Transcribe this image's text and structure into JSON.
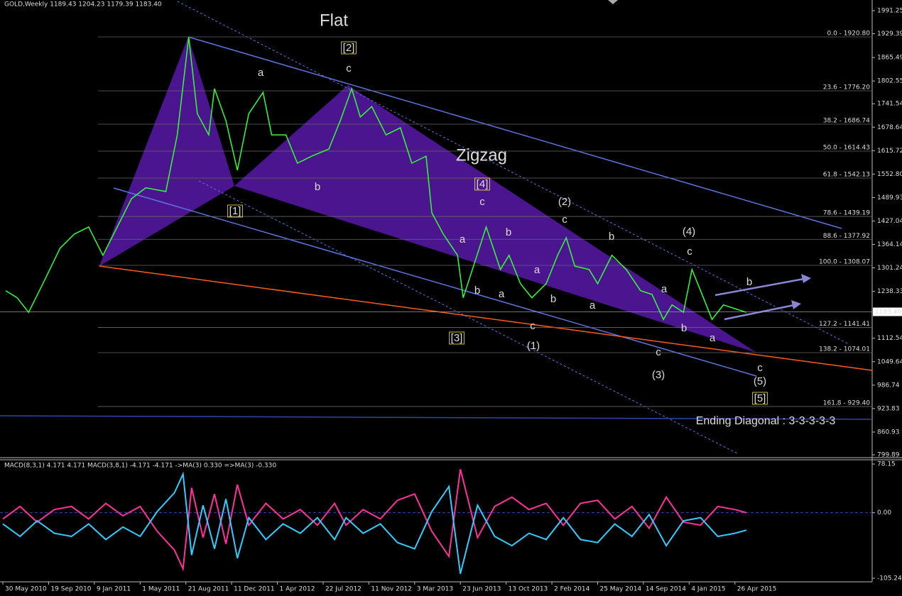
{
  "header": "GOLD,Weekly  1189.43 1204.23 1179.39 1183.40",
  "macd_header": "MACD(8,3,1) 4.171 4.171  MACD(3,8,1) -4.171 -4.171  ->MA(3) 0.330  =>MA(3) -0.330",
  "chart_data": [
    {
      "type": "line",
      "x": [
        1,
        5,
        9,
        14,
        20,
        25,
        30,
        35,
        40,
        45,
        50,
        57,
        61,
        65,
        68,
        72,
        74,
        78,
        82,
        86,
        91,
        94,
        99,
        103,
        108,
        114,
        118,
        122,
        125,
        129,
        134,
        139,
        143,
        148,
        150,
        154,
        159,
        161,
        165,
        169,
        174,
        177,
        181,
        185,
        190,
        194,
        197,
        200,
        205,
        208,
        213,
        218,
        223,
        227,
        231,
        234,
        238,
        241,
        244,
        248,
        252,
        256,
        260
      ],
      "series": [
        {
          "color": "#33ff33",
          "values": [
            1240,
            1221,
            1182,
            1259,
            1354,
            1392,
            1411,
            1335,
            1411,
            1487,
            1516,
            1506,
            1658,
            1920,
            1715,
            1658,
            1782,
            1696,
            1563,
            1715,
            1772,
            1658,
            1658,
            1582,
            1601,
            1620,
            1696,
            1782,
            1706,
            1734,
            1658,
            1677,
            1582,
            1601,
            1449,
            1392,
            1335,
            1221,
            1316,
            1411,
            1297,
            1335,
            1259,
            1221,
            1259,
            1335,
            1382,
            1306,
            1297,
            1259,
            1335,
            1297,
            1240,
            1230,
            1163,
            1202,
            1182,
            1297,
            1240,
            1163,
            1202,
            1192,
            1182
          ]
        }
      ],
      "xlim": [
        -1,
        304
      ],
      "ylim": [
        799.89,
        1991.25
      ],
      "xticks": [
        {
          "value": 0,
          "label": "30 May 2010"
        },
        {
          "value": 16,
          "label": "19 Sep 2010"
        },
        {
          "value": 32,
          "label": "9 Jan 2011"
        },
        {
          "value": 48,
          "label": "1 May 2011"
        },
        {
          "value": 64,
          "label": "21 Aug 2011"
        },
        {
          "value": 80,
          "label": "11 Dec 2011"
        },
        {
          "value": 96,
          "label": "1 Apr 2012"
        },
        {
          "value": 112,
          "label": "22 Jul 2012"
        },
        {
          "value": 128,
          "label": "11 Nov 2012"
        },
        {
          "value": 144,
          "label": "3 Mar 2013"
        },
        {
          "value": 160,
          "label": "23 Jun 2013"
        },
        {
          "value": 176,
          "label": "13 Oct 2013"
        },
        {
          "value": 192,
          "label": "2 Feb 2014"
        },
        {
          "value": 208,
          "label": "25 May 2014"
        },
        {
          "value": 224,
          "label": "14 Sep 2014"
        },
        {
          "value": 240,
          "label": "4 Jan 2015"
        },
        {
          "value": 256,
          "label": "26 Apr 2015"
        }
      ],
      "yticks": [
        1991.25,
        1929.39,
        1865.49,
        1802.55,
        1741.54,
        1678.64,
        1615.72,
        {
          "value": 1552.8,
          "label": "1552.80"
        },
        1489.93,
        1427.04,
        1364.14,
        1301.24,
        1238.33,
        1112.54,
        1049.64,
        986.74,
        923.83,
        860.93,
        799.89
      ],
      "last_price": {
        "value": 1183.4,
        "label": "1183.40"
      },
      "fib_levels": [
        {
          "value": 1920.8,
          "label": "0.0 - 1920.80"
        },
        {
          "value": 1776.2,
          "label": "23.6 - 1776.20"
        },
        {
          "value": 1686.74,
          "label": "38.2 - 1686.74"
        },
        {
          "value": 1614.43,
          "label": "50.0 - 1614.43"
        },
        {
          "value": 1542.13,
          "label": "61.8 - 1542.13"
        },
        {
          "value": 1439.19,
          "label": "78.6 - 1439.19"
        },
        {
          "value": 1377.92,
          "label": "88.6 - 1377.92"
        },
        {
          "value": 1308.07,
          "label": "100.0 - 1308.07"
        },
        {
          "value": 1141.41,
          "label": "127.2 - 1141.41"
        },
        {
          "value": 1074.01,
          "label": "138.2 - 1074.01"
        },
        {
          "value": 929.4,
          "label": "161.8 - 929.40"
        }
      ],
      "annotations": [
        {
          "text": "Flat",
          "color": "#e8317f"
        },
        {
          "text": "[2]",
          "color": "#ffee44"
        },
        {
          "text": "c",
          "color": "#33ddff"
        },
        {
          "text": "a",
          "color": "#33ddff"
        },
        {
          "text": "b",
          "color": "#33ddff"
        },
        {
          "text": "[1]",
          "color": "#ffee44"
        },
        {
          "text": "Zigzag",
          "color": "#e8317f"
        },
        {
          "text": "[4]",
          "color": "#ffee44"
        },
        {
          "text": "c",
          "color": "#b5a46a"
        },
        {
          "text": "(2)",
          "color": "#cc2222"
        },
        {
          "text": "c",
          "color": "#b5a46a"
        },
        {
          "text": "b",
          "color": "#33ddff"
        },
        {
          "text": "a",
          "color": "#b5a46a"
        },
        {
          "text": "b",
          "color": "#b5a46a"
        },
        {
          "text": "a",
          "color": "#33ddff"
        },
        {
          "text": "a",
          "color": "#b5a46a"
        },
        {
          "text": "b",
          "color": "#b5a46a"
        },
        {
          "text": "c",
          "color": "#33ddff"
        },
        {
          "text": "[3]",
          "color": "#ffee44"
        },
        {
          "text": "(1)",
          "color": "#cc2222"
        },
        {
          "text": "b",
          "color": "#33ddff"
        },
        {
          "text": "a",
          "color": "#33ddff"
        },
        {
          "text": "(4)",
          "color": "#cc2222"
        },
        {
          "text": "c",
          "color": "#b5a46a"
        },
        {
          "text": "a",
          "color": "#b5a46a"
        },
        {
          "text": "b",
          "color": "#b5a46a"
        },
        {
          "text": "c",
          "color": "#33ddff"
        },
        {
          "text": "b",
          "color": "#33ddff"
        },
        {
          "text": "a",
          "color": "#33ddff"
        },
        {
          "text": "(3)",
          "color": "#cc2222"
        },
        {
          "text": "c",
          "color": "#33ddff"
        },
        {
          "text": "(5)",
          "color": "#cc2222"
        },
        {
          "text": "[5]",
          "color": "#ffee44"
        },
        {
          "text": "Ending Diagonal : 3-3-3-3-3",
          "color": "#e8317f"
        }
      ]
    },
    {
      "type": "line",
      "x": [
        0,
        6,
        12,
        18,
        24,
        30,
        36,
        42,
        48,
        54,
        60,
        63,
        66,
        70,
        74,
        78,
        82,
        86,
        92,
        98,
        104,
        110,
        116,
        120,
        126,
        132,
        138,
        144,
        150,
        156,
        160,
        166,
        172,
        178,
        184,
        190,
        196,
        202,
        208,
        214,
        220,
        226,
        232,
        238,
        244,
        250,
        256,
        260
      ],
      "series": [
        {
          "color": "#ff3399",
          "values": [
            -10,
            10,
            -15,
            5,
            10,
            -10,
            15,
            -5,
            10,
            -30,
            -60,
            -90,
            40,
            -40,
            30,
            -50,
            45,
            -20,
            15,
            -10,
            5,
            -20,
            15,
            -20,
            5,
            -10,
            20,
            30,
            -30,
            -70,
            70,
            -40,
            10,
            25,
            5,
            15,
            -20,
            15,
            20,
            -10,
            10,
            -25,
            25,
            -15,
            -20,
            10,
            5,
            0
          ]
        },
        {
          "color": "#33ccff",
          "values": [
            -18,
            -38,
            -13,
            -33,
            -38,
            -18,
            -43,
            -23,
            -38,
            2,
            32,
            62,
            -68,
            12,
            -58,
            22,
            -73,
            -8,
            -43,
            -18,
            -33,
            -8,
            -43,
            -8,
            -33,
            -18,
            -48,
            -58,
            2,
            42,
            -98,
            12,
            -38,
            -53,
            -33,
            -43,
            -8,
            -43,
            -48,
            -18,
            -38,
            -3,
            -53,
            -13,
            -8,
            -38,
            -33,
            -28
          ]
        }
      ],
      "xlim": [
        -1,
        304
      ],
      "ylim": [
        -105.24,
        78.15
      ],
      "yticks": [
        {
          "value": 78.15,
          "label": "78.15"
        },
        {
          "value": 0,
          "label": "0.00"
        },
        {
          "value": -105.24,
          "label": "-105.24"
        }
      ]
    }
  ]
}
